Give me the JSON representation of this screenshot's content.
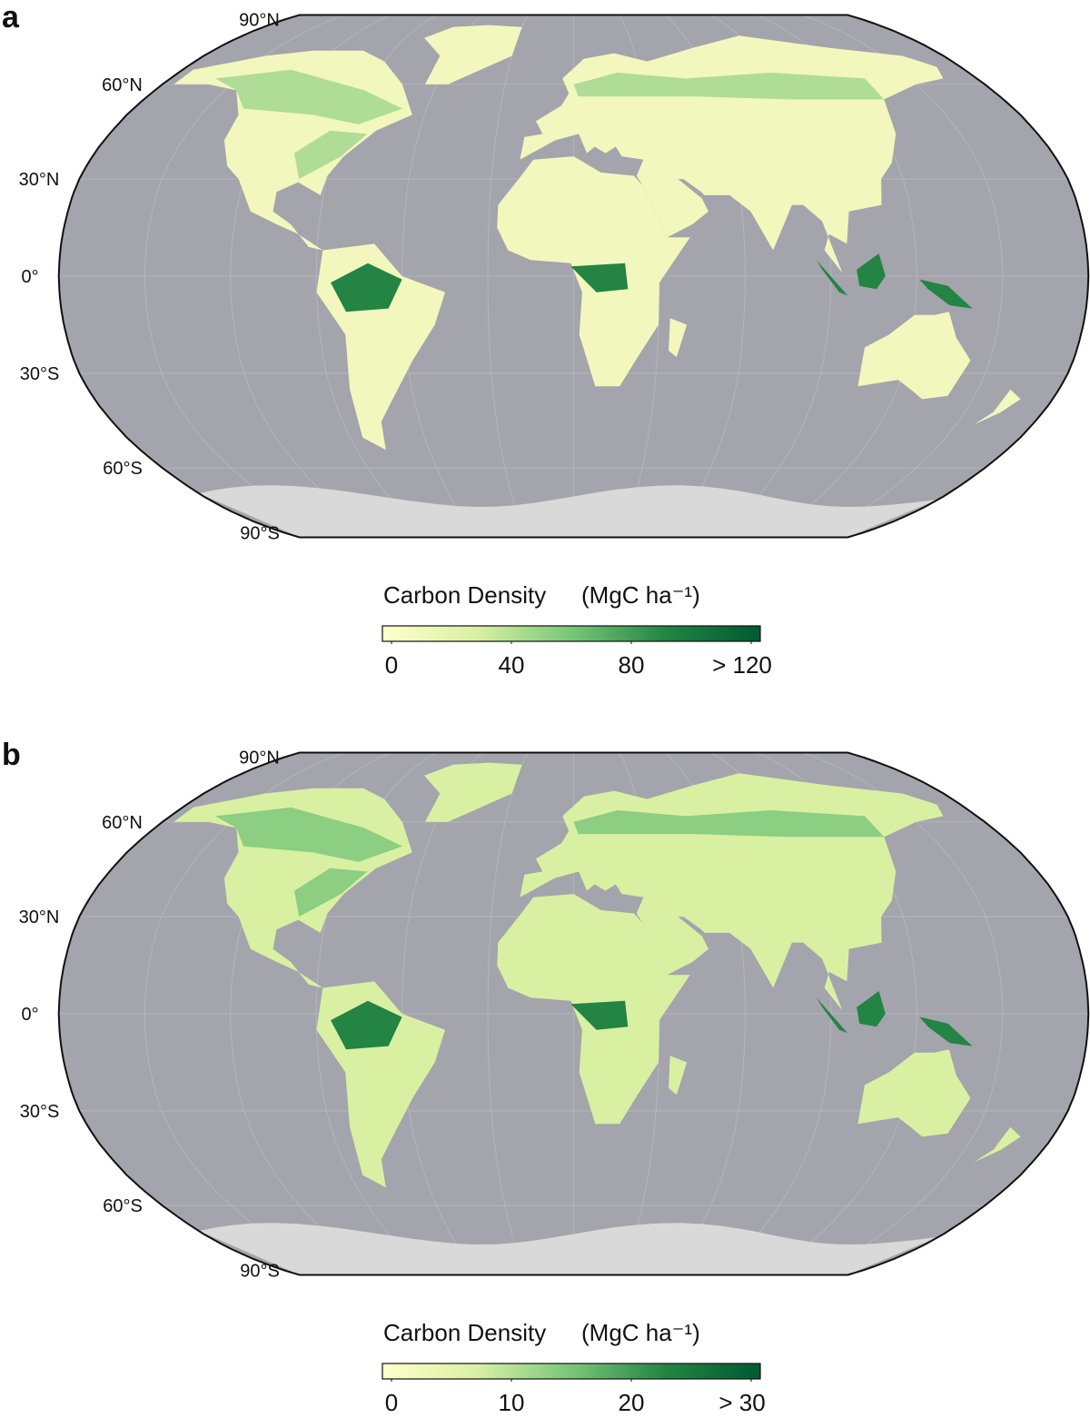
{
  "panels": [
    {
      "label": "a",
      "lat_labels": [
        "90°N",
        "60°N",
        "30°N",
        "0°",
        "30°S",
        "60°S",
        "90°S"
      ],
      "colorbar": {
        "title": "Carbon Density",
        "unit": "(MgC ha⁻¹)",
        "range": [
          0,
          120
        ],
        "ticks": [
          0,
          40,
          80,
          {
            "value": 120,
            "label": "> 120"
          }
        ],
        "colors": [
          "#ffffcc",
          "#d9f0a3",
          "#78c679",
          "#238443",
          "#005a32"
        ]
      }
    },
    {
      "label": "b",
      "lat_labels": [
        "90°N",
        "60°N",
        "30°N",
        "0°",
        "30°S",
        "60°S",
        "90°S"
      ],
      "colorbar": {
        "title": "Carbon Density",
        "unit": "(MgC ha⁻¹)",
        "range": [
          0,
          30
        ],
        "ticks": [
          0,
          10,
          20,
          {
            "value": 30,
            "label": "> 30"
          }
        ],
        "colors": [
          "#ffffcc",
          "#d9f0a3",
          "#78c679",
          "#238443",
          "#005a32"
        ]
      }
    }
  ]
}
